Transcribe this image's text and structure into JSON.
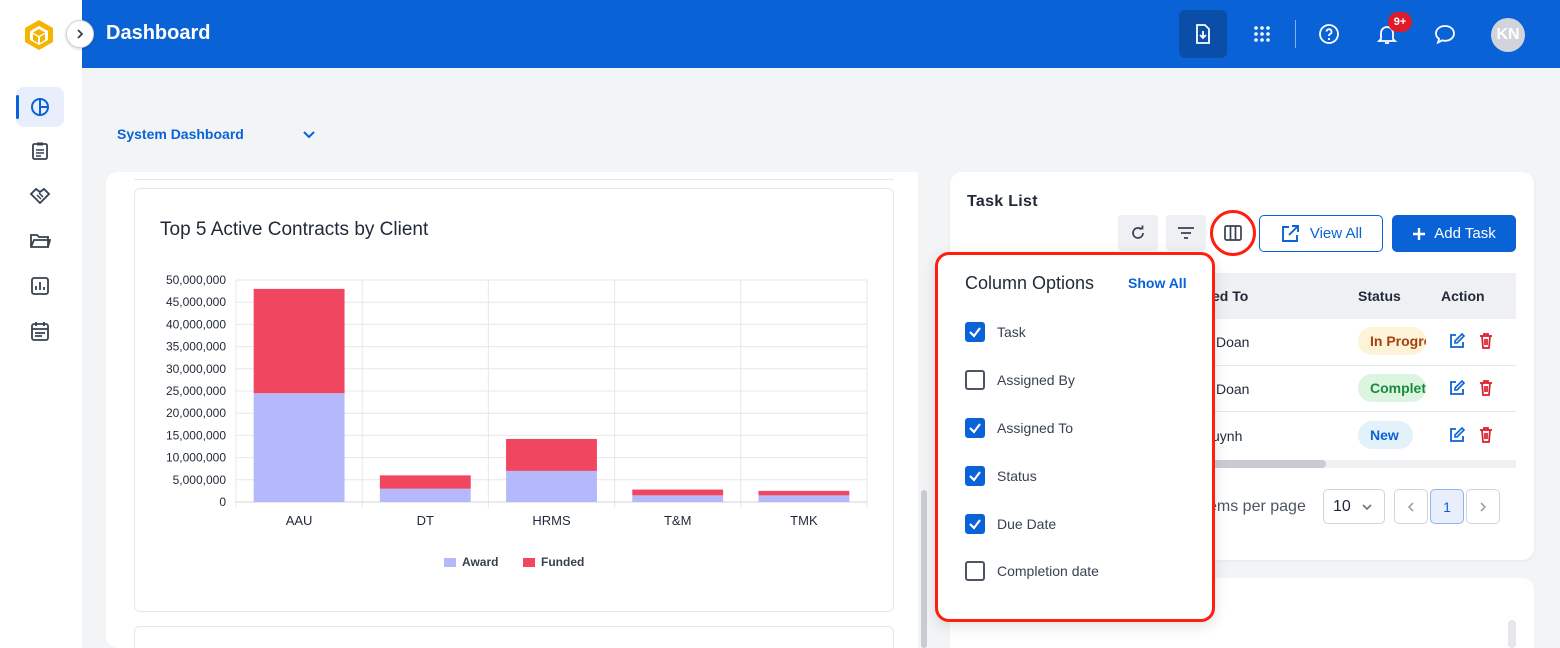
{
  "header": {
    "title": "Dashboard",
    "notification_count": "9+",
    "avatar_initials": "KN"
  },
  "sidebar": {
    "items": [
      {
        "name": "dashboard",
        "icon": "pie-chart-icon",
        "active": true
      },
      {
        "name": "clipboard",
        "icon": "clipboard-icon"
      },
      {
        "name": "handshake",
        "icon": "handshake-icon"
      },
      {
        "name": "folder",
        "icon": "folder-icon"
      },
      {
        "name": "reports",
        "icon": "bar-chart-icon"
      },
      {
        "name": "calendar",
        "icon": "calendar-icon"
      }
    ]
  },
  "dashboard_select": {
    "value": "System Dashboard"
  },
  "chart_card": {
    "title": "Top 5 Active Contracts by Client"
  },
  "chart_data": {
    "type": "bar",
    "stacked": true,
    "categories": [
      "AAU",
      "DT",
      "HRMS",
      "T&M",
      "TMK"
    ],
    "series": [
      {
        "name": "Award",
        "color": "#b5b8fb",
        "values": [
          24500000,
          3000000,
          7000000,
          1500000,
          1500000
        ]
      },
      {
        "name": "Funded",
        "color": "#f0465f",
        "values": [
          23500000,
          3000000,
          7200000,
          1300000,
          1000000
        ]
      }
    ],
    "ylim": [
      0,
      50000000
    ],
    "yticks": [
      "0",
      "5,000,000",
      "10,000,000",
      "15,000,000",
      "20,000,000",
      "25,000,000",
      "30,000,000",
      "35,000,000",
      "40,000,000",
      "45,000,000",
      "50,000,000"
    ],
    "grid": true,
    "legend": "bottom"
  },
  "task_list": {
    "title": "Task List",
    "view_all_label": "View All",
    "add_task_label": "Add Task",
    "columns": {
      "assigned_to": "ed To",
      "status": "Status",
      "action": "Action"
    },
    "rows": [
      {
        "assigned_to": "Doan",
        "status": "In Progre",
        "status_color": "#a3420c",
        "status_bg": "#fdf3d8"
      },
      {
        "assigned_to": "Doan",
        "status": "Complet",
        "status_color": "#1a8a3b",
        "status_bg": "#dcf5e0"
      },
      {
        "assigned_to": "uynh",
        "status": "New",
        "status_color": "#0a63d6",
        "status_bg": "#e3f1fb"
      }
    ],
    "items_per_page_label": "ems per page",
    "items_per_page_value": "10",
    "current_page": "1"
  },
  "column_options": {
    "title": "Column Options",
    "show_all_label": "Show All",
    "options": [
      {
        "label": "Task",
        "checked": true
      },
      {
        "label": "Assigned By",
        "checked": false
      },
      {
        "label": "Assigned To",
        "checked": true
      },
      {
        "label": "Status",
        "checked": true
      },
      {
        "label": "Due Date",
        "checked": true
      },
      {
        "label": "Completion date",
        "checked": false
      }
    ]
  }
}
